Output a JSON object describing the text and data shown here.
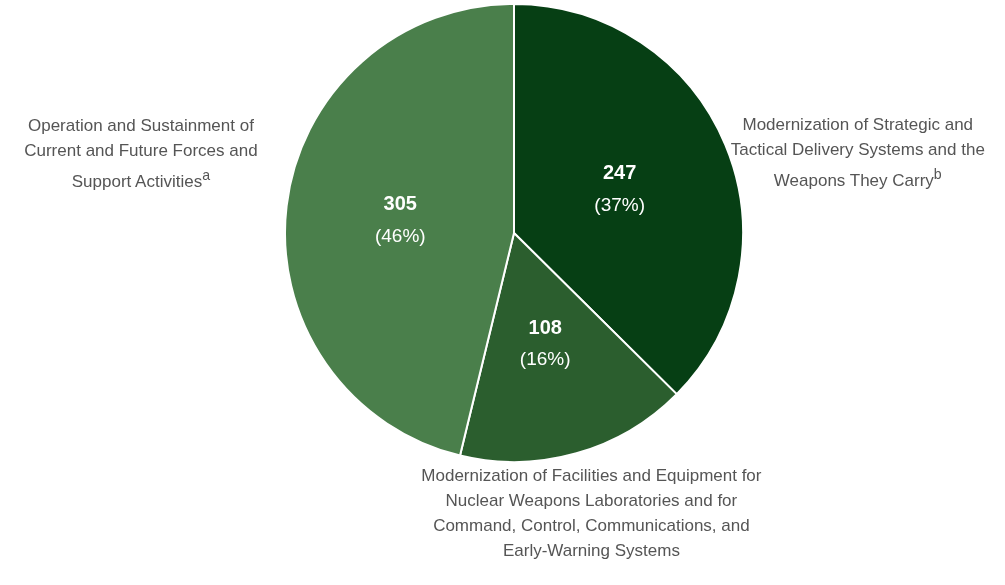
{
  "chart_data": {
    "type": "pie",
    "categories": [
      "Modernization of Strategic and Tactical Delivery Systems and the Weapons They Carry$^{b}$",
      "Modernization of Facilities and Equipment for Nuclear Weapons Laboratories and for Command, Control, Communications, and Early-Warning Systems",
      "Operation and Sustainment of Current and Future Forces and Support Activities$^{a}$"
    ],
    "values": [
      247,
      108,
      305
    ],
    "colors": [
      "#063f14",
      "#2b5e2e",
      "#4a7f4b"
    ],
    "value_labels": [
      "247 (37%)",
      "108 (16%)",
      "305 (46%)"
    ]
  }
}
